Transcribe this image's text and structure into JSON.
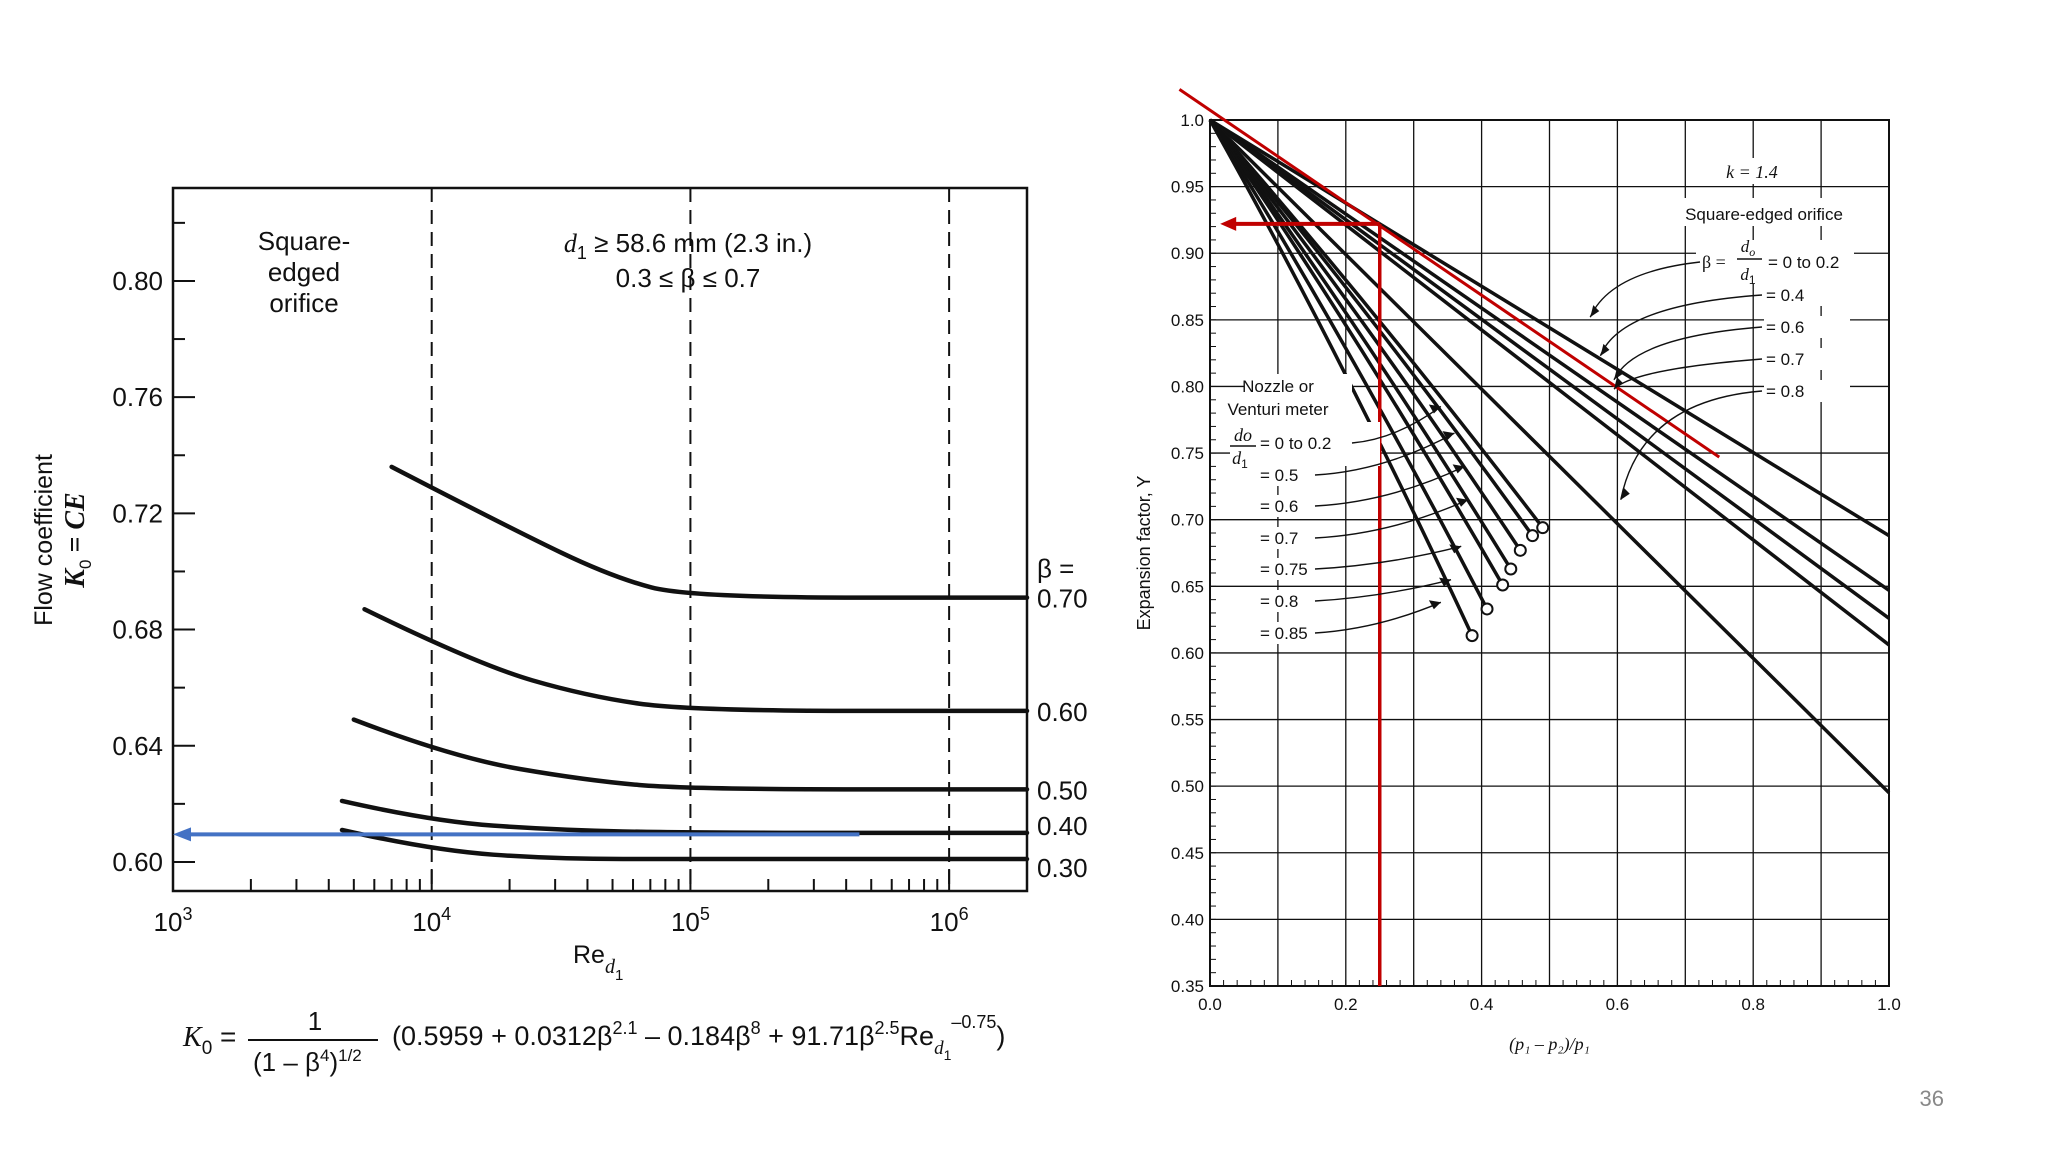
{
  "slide": {
    "page_number": "36"
  },
  "chart_data": [
    {
      "type": "line",
      "title": "",
      "xlabel": "Re",
      "xlabel_sub": "d",
      "xlabel_subsub": "1",
      "ylabel_line1": "Flow coefficient",
      "ylabel_line2_main": "K",
      "ylabel_line2_sub": "0",
      "ylabel_line2_rest": " = CE",
      "x_scale": "log",
      "xlim": [
        1000,
        2000000
      ],
      "ylim": [
        0.59,
        0.832
      ],
      "x_ticks": [
        {
          "base": "10",
          "exp": "3",
          "value": 1000
        },
        {
          "base": "10",
          "exp": "4",
          "value": 10000
        },
        {
          "base": "10",
          "exp": "5",
          "value": 100000
        },
        {
          "base": "10",
          "exp": "6",
          "value": 1000000
        }
      ],
      "y_ticks": [
        "0.60",
        "0.64",
        "0.68",
        "0.72",
        "0.76",
        "0.80"
      ],
      "y_tick_values": [
        0.6,
        0.64,
        0.68,
        0.72,
        0.76,
        0.8
      ],
      "vertical_dashed_lines": [
        10000,
        100000,
        1000000
      ],
      "annotation_left": [
        "Square-",
        "edged",
        "orifice"
      ],
      "annotation_top_line1_var": "d",
      "annotation_top_line1_sub": "1",
      "annotation_top_line1_rest": " ≥ 58.6 mm (2.3 in.)",
      "annotation_top_line2": "0.3 ≤ β ≤ 0.7",
      "beta_header": "β =",
      "series": [
        {
          "name": "0.70",
          "x": [
            7000,
            20000,
            50000,
            100000,
            2000000
          ],
          "y": [
            0.736,
            0.715,
            0.698,
            0.691,
            0.691
          ]
        },
        {
          "name": "0.60",
          "x": [
            5500,
            15000,
            40000,
            100000,
            2000000
          ],
          "y": [
            0.687,
            0.668,
            0.657,
            0.652,
            0.652
          ]
        },
        {
          "name": "0.50",
          "x": [
            5000,
            12000,
            40000,
            100000,
            2000000
          ],
          "y": [
            0.649,
            0.636,
            0.628,
            0.625,
            0.625
          ]
        },
        {
          "name": "0.40",
          "x": [
            4500,
            10000,
            30000,
            100000,
            2000000
          ],
          "y": [
            0.621,
            0.614,
            0.611,
            0.61,
            0.61
          ]
        },
        {
          "name": "0.30",
          "x": [
            4500,
            10000,
            30000,
            100000,
            2000000
          ],
          "y": [
            0.611,
            0.604,
            0.601,
            0.601,
            0.601
          ]
        }
      ],
      "highlight_arrow": {
        "from_x": 450000,
        "to_x": 1000,
        "y": 0.6095,
        "color": "#4472c4"
      },
      "formula": {
        "lhs_main": "K",
        "lhs_sub": "0",
        "equals": "=",
        "numerator": "1",
        "denominator_main": "(1 – β",
        "denominator_sup": "4",
        "denominator_close": ")",
        "denominator_exp": "1/2",
        "body_1": "(0.5959 + 0.0312β",
        "exp_1": "2.1",
        "body_2": " – 0.184β",
        "exp_2": "8",
        "body_3": "  + 91.71β",
        "exp_3": "2.5",
        "body_4": "Re",
        "sub_4": "d",
        "subsub_4": "1",
        "exp_4": "–0.75",
        "close": ")"
      }
    },
    {
      "type": "line",
      "title": "",
      "xlabel": "(p₁ – p₂)/p₁",
      "ylabel": "Expansion factor, Y",
      "xlim": [
        0.0,
        1.0
      ],
      "ylim": [
        0.35,
        1.0
      ],
      "x_ticks": [
        "0.0",
        "0.2",
        "0.4",
        "0.6",
        "0.8",
        "1.0"
      ],
      "y_ticks": [
        "0.35",
        "0.40",
        "0.45",
        "0.50",
        "0.55",
        "0.60",
        "0.65",
        "0.70",
        "0.75",
        "0.80",
        "0.85",
        "0.90",
        "0.95",
        "1.0"
      ],
      "k_label": "k = 1.4",
      "orifice_title": "Square-edged orifice",
      "orifice_beta_prefix": "β =",
      "orifice_beta_frac_num": "d",
      "orifice_beta_frac_num_sub": "o",
      "orifice_beta_frac_den": "d",
      "orifice_beta_frac_den_sub": "1",
      "orifice_labels": [
        "= 0 to 0.2",
        "= 0.4",
        "= 0.6",
        "= 0.7",
        "= 0.8"
      ],
      "orifice_series": [
        {
          "name": "0 to 0.2",
          "x": [
            0.0,
            1.0
          ],
          "y": [
            1.0,
            0.688
          ]
        },
        {
          "name": "0.4",
          "x": [
            0.0,
            1.0
          ],
          "y": [
            1.0,
            0.647
          ]
        },
        {
          "name": "0.6",
          "x": [
            0.0,
            1.0
          ],
          "y": [
            1.0,
            0.626
          ]
        },
        {
          "name": "0.7",
          "x": [
            0.0,
            1.0
          ],
          "y": [
            1.0,
            0.606
          ]
        },
        {
          "name": "0.8",
          "x": [
            0.0,
            1.0
          ],
          "y": [
            1.0,
            0.495
          ]
        }
      ],
      "nozzle_title_1": "Nozzle or",
      "nozzle_title_2": "Venturi meter",
      "nozzle_frac_num": "do",
      "nozzle_frac_den": "d",
      "nozzle_frac_den_sub": "1",
      "nozzle_labels": [
        "= 0 to 0.2",
        "= 0.5",
        "= 0.6",
        "= 0.7",
        "= 0.75",
        "= 0.8",
        "= 0.85"
      ],
      "nozzle_series": [
        {
          "name": "0 to 0.2",
          "x": [
            0.0,
            0.49
          ],
          "y": [
            1.0,
            0.694
          ],
          "bow": 0.01
        },
        {
          "name": "0.5",
          "x": [
            0.0,
            0.475
          ],
          "y": [
            1.0,
            0.688
          ],
          "bow": 0.012
        },
        {
          "name": "0.6",
          "x": [
            0.0,
            0.457
          ],
          "y": [
            1.0,
            0.677
          ],
          "bow": 0.014
        },
        {
          "name": "0.7",
          "x": [
            0.0,
            0.443
          ],
          "y": [
            1.0,
            0.663
          ],
          "bow": 0.015
        },
        {
          "name": "0.75",
          "x": [
            0.0,
            0.431
          ],
          "y": [
            1.0,
            0.651
          ],
          "bow": 0.016
        },
        {
          "name": "0.8",
          "x": [
            0.0,
            0.408
          ],
          "y": [
            1.0,
            0.633
          ],
          "bow": 0.017
        },
        {
          "name": "0.85",
          "x": [
            0.0,
            0.386
          ],
          "y": [
            1.0,
            0.613
          ],
          "bow": 0.018
        }
      ],
      "red_tangent": {
        "x": [
          -0.045,
          0.75
        ],
        "y": [
          1.023,
          0.747
        ],
        "color": "#c00000"
      },
      "red_vertical_x": 0.25,
      "red_horizontal_y": 0.922,
      "red_arrow_to_x": 0.015
    }
  ]
}
